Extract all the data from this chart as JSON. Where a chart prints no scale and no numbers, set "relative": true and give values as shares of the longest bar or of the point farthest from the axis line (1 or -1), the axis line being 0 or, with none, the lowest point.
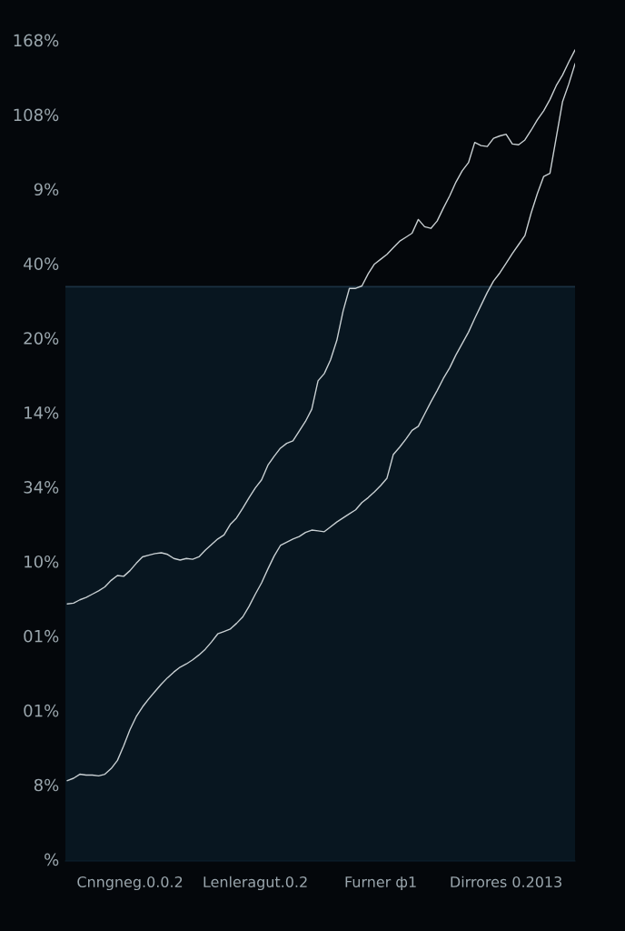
{
  "chart_data": {
    "type": "line",
    "relative": true,
    "categories": [
      null,
      null,
      null,
      null,
      null,
      null,
      null,
      null,
      null,
      null,
      "Cnngneg.0.0.2",
      null,
      null,
      null,
      null,
      null,
      null,
      null,
      null,
      null,
      null,
      null,
      null,
      null,
      null,
      null,
      null,
      null,
      null,
      null,
      "Lenleragut.0.2",
      null,
      null,
      null,
      null,
      null,
      null,
      null,
      null,
      null,
      null,
      null,
      null,
      null,
      null,
      null,
      null,
      null,
      null,
      null,
      "Furner ф1",
      null,
      null,
      null,
      null,
      null,
      null,
      null,
      null,
      null,
      null,
      null,
      null,
      null,
      null,
      null,
      null,
      null,
      null,
      null,
      "Dirrores 0.2013",
      null,
      null,
      null,
      null,
      null,
      null,
      null,
      null,
      null,
      null,
      null
    ],
    "series": [
      {
        "color": "#c9d0d3",
        "values": [
          0.317,
          0.318,
          0.322,
          0.325,
          0.329,
          0.333,
          0.338,
          0.346,
          0.352,
          0.351,
          0.358,
          0.367,
          0.375,
          0.377,
          0.379,
          0.38,
          0.378,
          0.373,
          0.371,
          0.373,
          0.372,
          0.375,
          0.383,
          0.39,
          0.397,
          0.402,
          0.415,
          0.423,
          0.435,
          0.448,
          0.46,
          0.47,
          0.488,
          0.499,
          0.509,
          0.515,
          0.518,
          0.53,
          0.542,
          0.557,
          0.592,
          0.601,
          0.618,
          0.642,
          0.678,
          0.706,
          0.706,
          0.709,
          0.724,
          0.736,
          0.742,
          0.748,
          0.756,
          0.764,
          0.769,
          0.774,
          0.791,
          0.782,
          0.78,
          0.789,
          0.805,
          0.82,
          0.837,
          0.851,
          0.861,
          0.886,
          0.882,
          0.881,
          0.891,
          0.894,
          0.896,
          0.884,
          0.883,
          0.889,
          0.901,
          0.914,
          0.925,
          0.939,
          0.956,
          0.969,
          0.985,
          1
        ]
      },
      {
        "color": "#c9d0d3",
        "values": [
          0.099,
          0.102,
          0.107,
          0.106,
          0.106,
          0.105,
          0.107,
          0.114,
          0.124,
          0.142,
          0.162,
          0.178,
          0.19,
          0.2,
          0.209,
          0.218,
          0.226,
          0.233,
          0.239,
          0.243,
          0.248,
          0.254,
          0.261,
          0.27,
          0.28,
          0.283,
          0.286,
          0.293,
          0.301,
          0.314,
          0.329,
          0.343,
          0.36,
          0.376,
          0.389,
          0.393,
          0.397,
          0.4,
          0.405,
          0.408,
          0.407,
          0.406,
          0.412,
          0.418,
          0.423,
          0.428,
          0.433,
          0.442,
          0.448,
          0.455,
          0.463,
          0.472,
          0.501,
          0.51,
          0.52,
          0.531,
          0.536,
          0.551,
          0.566,
          0.58,
          0.595,
          0.608,
          0.624,
          0.638,
          0.652,
          0.669,
          0.685,
          0.701,
          0.715,
          0.725,
          0.737,
          0.749,
          0.76,
          0.771,
          0.799,
          0.823,
          0.844,
          0.848,
          0.892,
          0.936,
          0.958,
          0.983
        ]
      }
    ],
    "annotations": [
      "168%",
      "108%",
      "9%",
      "40%",
      "20%",
      "14%",
      "34%",
      "10%",
      "01%",
      "01%",
      "8%",
      "%"
    ],
    "bands": [
      {
        "axis": "y",
        "from": 0,
        "to": 0.708,
        "color": "#081620"
      }
    ],
    "ref_lines": [
      {
        "axis": "y",
        "value": 0.708,
        "color": "#1b3242"
      }
    ]
  }
}
